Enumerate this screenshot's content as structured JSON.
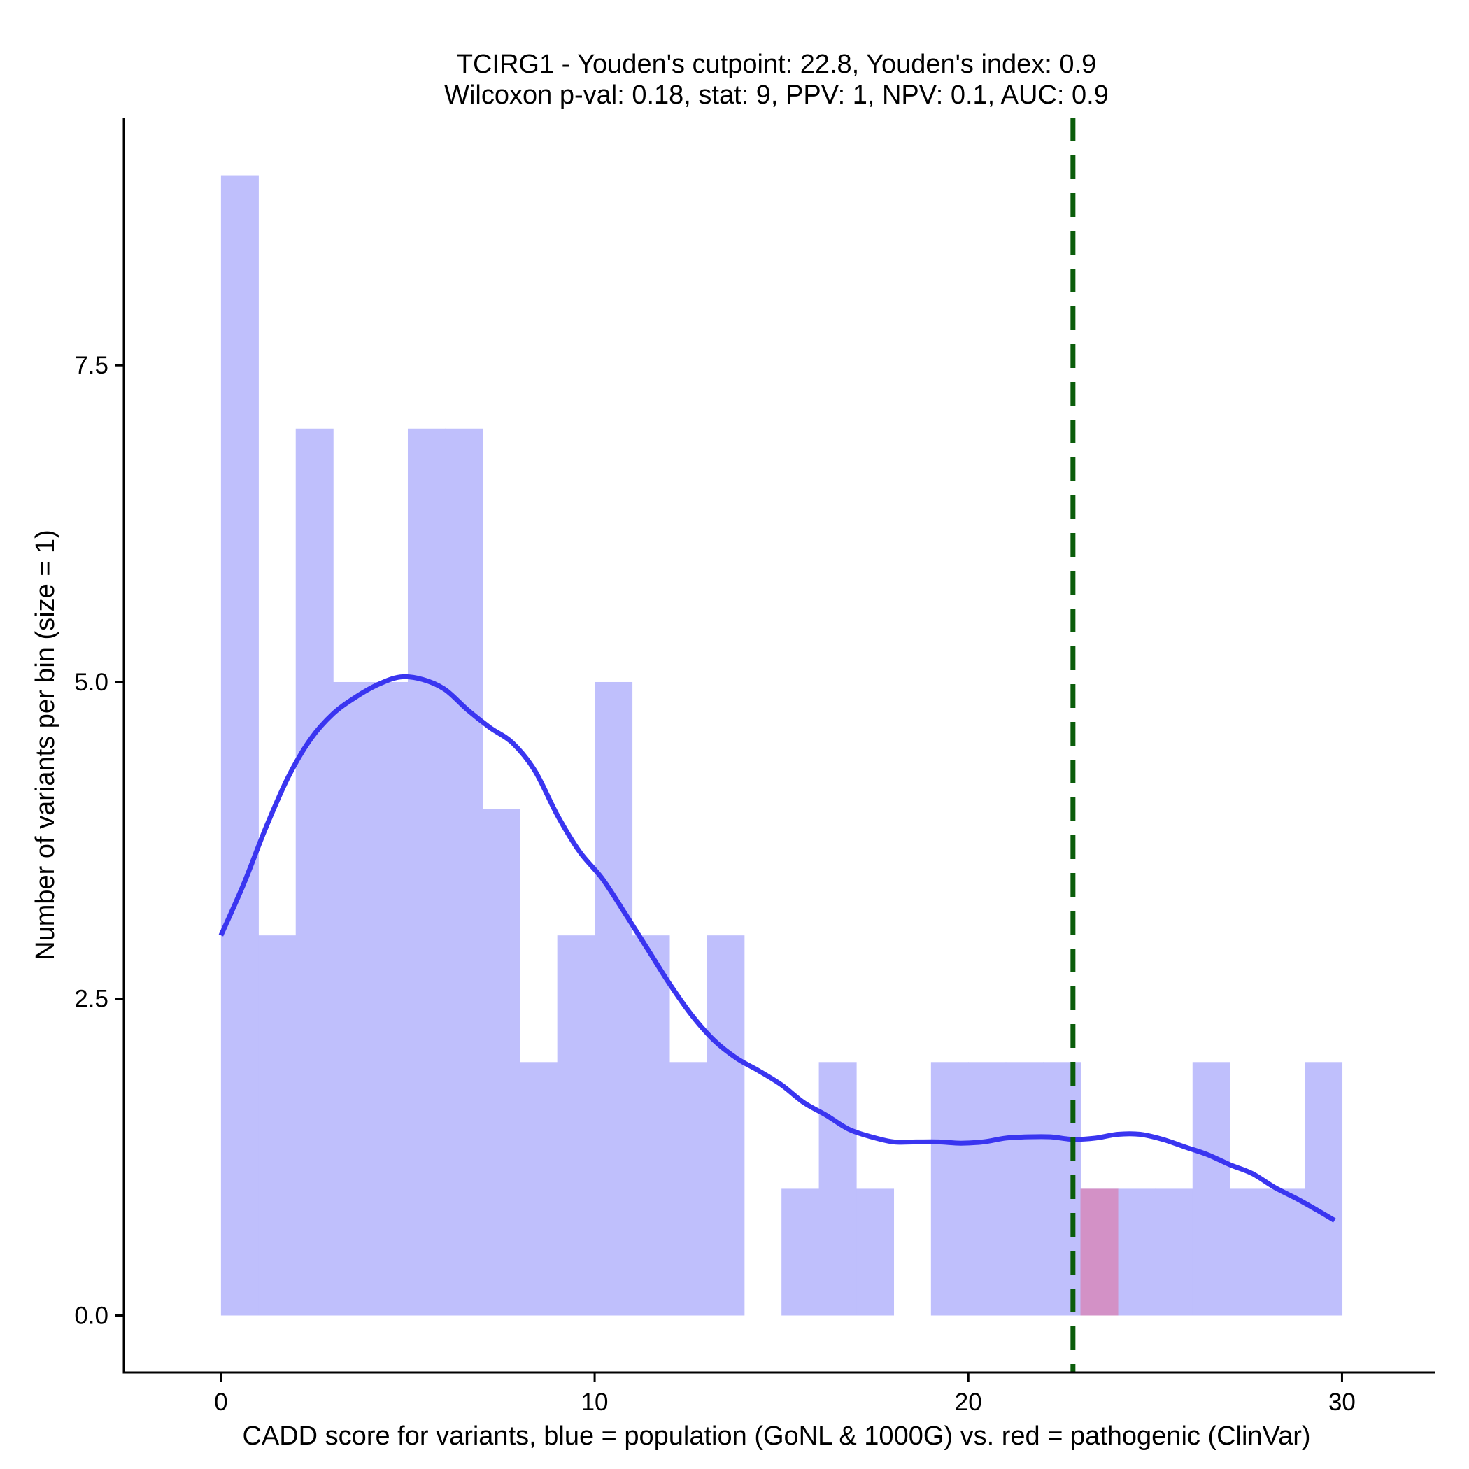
{
  "chart_data": {
    "type": "histogram",
    "title_line1": "TCIRG1 - Youden's cutpoint: 22.8, Youden's index: 0.9",
    "title_line2": "Wilcoxon p-val: 0.18, stat: 9, PPV: 1, NPV: 0.1, AUC: 0.9",
    "xlabel": "CADD score for variants, blue = population (GoNL & 1000G) vs. red = pathogenic (ClinVar)",
    "ylabel": "Number of variants per bin (size = 1)",
    "xlim": [
      -2.6,
      32.5
    ],
    "ylim": [
      -0.45,
      9.5
    ],
    "x_ticks": [
      0,
      10,
      20,
      30
    ],
    "x_tick_labels": [
      "0",
      "10",
      "20",
      "30"
    ],
    "y_ticks": [
      0,
      2.5,
      5,
      7.5
    ],
    "y_tick_labels": [
      "0.0",
      "2.5",
      "5.0",
      "7.5"
    ],
    "bin_width": 1,
    "cutpoint": 22.8,
    "series": [
      {
        "name": "population",
        "color": "#bfbffc",
        "bins": [
          {
            "x0": 0,
            "count": 9
          },
          {
            "x0": 1,
            "count": 3
          },
          {
            "x0": 2,
            "count": 7
          },
          {
            "x0": 3,
            "count": 5
          },
          {
            "x0": 4,
            "count": 5
          },
          {
            "x0": 5,
            "count": 7
          },
          {
            "x0": 6,
            "count": 7
          },
          {
            "x0": 7,
            "count": 4
          },
          {
            "x0": 8,
            "count": 2
          },
          {
            "x0": 9,
            "count": 3
          },
          {
            "x0": 10,
            "count": 5
          },
          {
            "x0": 11,
            "count": 3
          },
          {
            "x0": 12,
            "count": 2
          },
          {
            "x0": 13,
            "count": 3
          },
          {
            "x0": 14,
            "count": 0
          },
          {
            "x0": 15,
            "count": 1
          },
          {
            "x0": 16,
            "count": 2
          },
          {
            "x0": 17,
            "count": 1
          },
          {
            "x0": 18,
            "count": 0
          },
          {
            "x0": 19,
            "count": 2
          },
          {
            "x0": 20,
            "count": 2
          },
          {
            "x0": 21,
            "count": 2
          },
          {
            "x0": 22,
            "count": 2
          },
          {
            "x0": 23,
            "count": 1
          },
          {
            "x0": 24,
            "count": 1
          },
          {
            "x0": 25,
            "count": 1
          },
          {
            "x0": 26,
            "count": 2
          },
          {
            "x0": 27,
            "count": 1
          },
          {
            "x0": 28,
            "count": 1
          },
          {
            "x0": 29,
            "count": 2
          }
        ]
      },
      {
        "name": "pathogenic",
        "color": "#d391c6",
        "bins": [
          {
            "x0": 23,
            "count": 1
          }
        ]
      }
    ],
    "density_curve": {
      "name": "population density",
      "color": "#3a35f0",
      "points": [
        [
          0,
          3.0
        ],
        [
          0.6,
          3.4
        ],
        [
          1.2,
          3.85
        ],
        [
          1.8,
          4.25
        ],
        [
          2.4,
          4.55
        ],
        [
          3.0,
          4.75
        ],
        [
          3.6,
          4.88
        ],
        [
          4.2,
          4.98
        ],
        [
          4.8,
          5.04
        ],
        [
          5.4,
          5.02
        ],
        [
          6.0,
          4.94
        ],
        [
          6.6,
          4.78
        ],
        [
          7.2,
          4.64
        ],
        [
          7.8,
          4.52
        ],
        [
          8.4,
          4.3
        ],
        [
          9.0,
          3.95
        ],
        [
          9.6,
          3.66
        ],
        [
          10.2,
          3.45
        ],
        [
          10.8,
          3.18
        ],
        [
          11.4,
          2.9
        ],
        [
          12.0,
          2.62
        ],
        [
          12.6,
          2.37
        ],
        [
          13.2,
          2.17
        ],
        [
          13.8,
          2.03
        ],
        [
          14.4,
          1.93
        ],
        [
          15.0,
          1.82
        ],
        [
          15.6,
          1.68
        ],
        [
          16.2,
          1.58
        ],
        [
          16.8,
          1.47
        ],
        [
          17.4,
          1.41
        ],
        [
          18.0,
          1.37
        ],
        [
          18.6,
          1.37
        ],
        [
          19.2,
          1.37
        ],
        [
          19.8,
          1.36
        ],
        [
          20.4,
          1.37
        ],
        [
          21.0,
          1.4
        ],
        [
          21.6,
          1.41
        ],
        [
          22.2,
          1.41
        ],
        [
          22.8,
          1.39
        ],
        [
          23.4,
          1.4
        ],
        [
          24.0,
          1.43
        ],
        [
          24.6,
          1.43
        ],
        [
          25.2,
          1.39
        ],
        [
          25.8,
          1.33
        ],
        [
          26.4,
          1.27
        ],
        [
          27.0,
          1.19
        ],
        [
          27.6,
          1.12
        ],
        [
          28.2,
          1.01
        ],
        [
          28.8,
          0.92
        ],
        [
          29.4,
          0.82
        ],
        [
          29.8,
          0.75
        ]
      ]
    }
  }
}
